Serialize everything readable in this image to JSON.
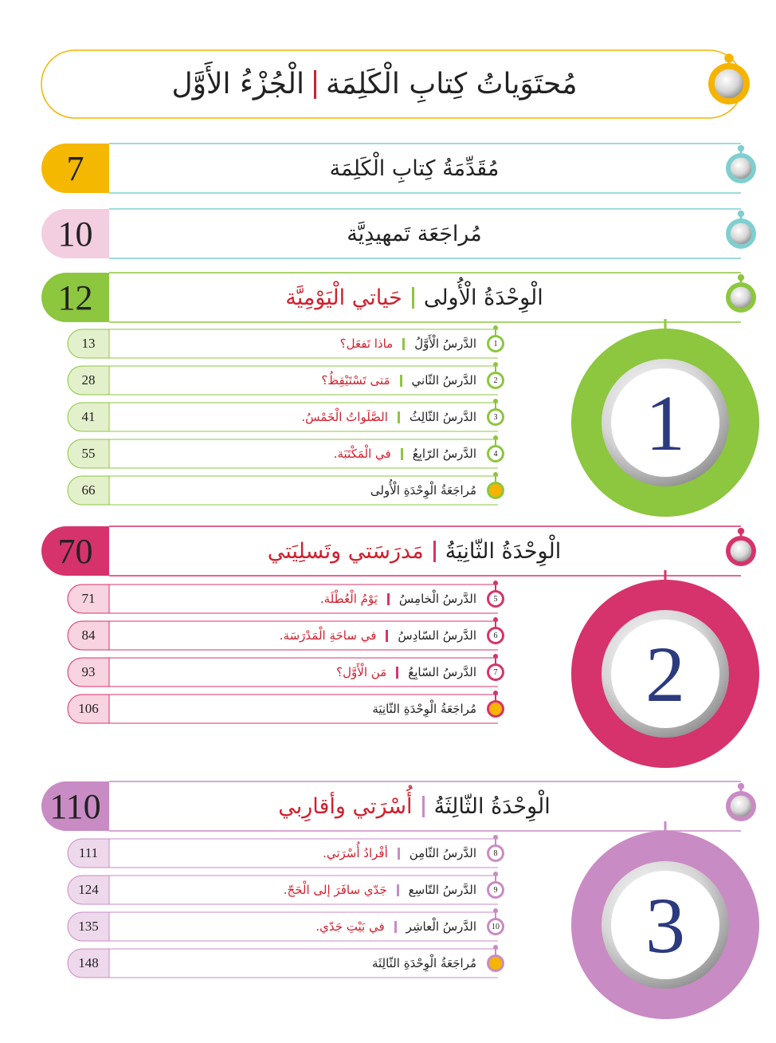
{
  "title": {
    "main": "مُحتَوَياتُ كِتابِ الْكَلِمَة",
    "part": "الْجُزْءُ الأَوَّل"
  },
  "intro": {
    "label": "مُقَدِّمَةُ كِتابِ الْكَلِمَة",
    "page": 7
  },
  "review": {
    "label": "مُراجَعَة تَمهيدِيَّة",
    "page": 10
  },
  "units": [
    {
      "number": 1,
      "name": "الْوِحْدَةُ الْأُولى",
      "theme": "حَياتي الْيَوْمِيَّة",
      "page": 12,
      "lessons": [
        {
          "number": 1,
          "name": "الدَّرسُ الْأَوَّلُ",
          "title": "ماذا تَفعَل؟",
          "page": 13
        },
        {
          "number": 2,
          "name": "الدَّرسُ الثّاني",
          "title": "مَتى تَسْتَيْقِظُ؟",
          "page": 28
        },
        {
          "number": 3,
          "name": "الدَّرسُ الثّالِثُ",
          "title": "الصَّلَواتُ الْخَمْسُ.",
          "page": 41
        },
        {
          "number": 4,
          "name": "الدَّرسُ الرّابِعُ",
          "title": "في الْمَكْتَبَة.",
          "page": 55
        }
      ],
      "review": {
        "label": "مُراجَعَةُ الْوِحْدَةِ الْأُولى",
        "page": 66
      }
    },
    {
      "number": 2,
      "name": "الْوِحْدَةُ الثّانِيَةُ",
      "theme": "مَدرَسَتي وتَسلِيَتي",
      "page": 70,
      "lessons": [
        {
          "number": 5,
          "name": "الدَّرسُ الْخامِسُ",
          "title": "يَوْمُ الْعُطْلَة.",
          "page": 71
        },
        {
          "number": 6,
          "name": "الدَّرسُ السّادِسُ",
          "title": "في ساحَةِ الْمَدْرَسَة.",
          "page": 84
        },
        {
          "number": 7,
          "name": "الدَّرسُ السّابِعُ",
          "title": "مَن الْأَوَّل؟",
          "page": 93
        }
      ],
      "review": {
        "label": "مُراجَعَةُ الْوِحْدَةِ الثّانِيَة",
        "page": 106
      }
    },
    {
      "number": 3,
      "name": "الْوِحْدَةُ الثّالِثَةُ",
      "theme": "أُسْرَتي وأقارِبي",
      "page": 110,
      "lessons": [
        {
          "number": 8,
          "name": "الدَّرسُ الثّامِن",
          "title": "أفْرادُ أُسْرَتي.",
          "page": 111
        },
        {
          "number": 9,
          "name": "الدَّرسُ التّاسِع",
          "title": "جَدّي سافَرَ إلى الْحَجّ.",
          "page": 124
        },
        {
          "number": 10,
          "name": "الدَّرسُ الْعاشِر",
          "title": "في بَيْتِ جَدّي.",
          "page": 135
        }
      ],
      "review": {
        "label": "مُراجَعَةُ الْوِحْدَةِ الثّالِثَة",
        "page": 148
      }
    }
  ]
}
